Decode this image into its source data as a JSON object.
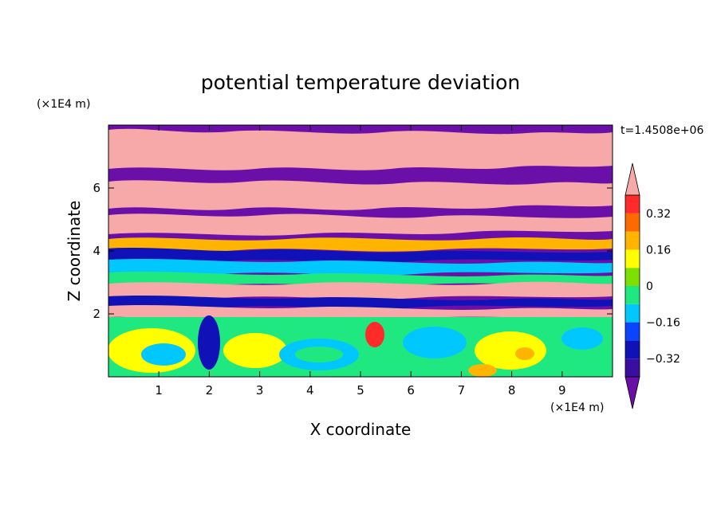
{
  "chart_data": {
    "type": "heatmap",
    "title": "potential temperature deviation",
    "xlabel": "X coordinate",
    "ylabel": "Z coordinate",
    "x_unit": "(×1E4 m)",
    "y_unit": "(×1E4 m)",
    "time_label": "t=1.4508e+06",
    "xlim": [
      0,
      10
    ],
    "ylim": [
      0,
      8
    ],
    "x_ticks": [
      "1",
      "2",
      "3",
      "4",
      "5",
      "6",
      "7",
      "8",
      "9"
    ],
    "y_ticks": [
      "2",
      "4",
      "6"
    ],
    "colorbar": {
      "labels": [
        "0.32",
        "0.16",
        "0",
        "−0.16",
        "−0.32"
      ],
      "label_values": [
        0.32,
        0.16,
        0,
        -0.16,
        -0.32
      ],
      "levels": [
        -0.4,
        -0.32,
        -0.24,
        -0.16,
        -0.08,
        0,
        0.08,
        0.16,
        0.24,
        0.32,
        0.4
      ],
      "colors": [
        "#6a0fa8",
        "#3a0fa0",
        "#1111b8",
        "#0a44ff",
        "#00c8ff",
        "#20e880",
        "#7ee000",
        "#ffff00",
        "#ffb400",
        "#ff6a00",
        "#ff2a2a",
        "#f7a8a8"
      ],
      "extend": "both"
    },
    "grid": false
  }
}
